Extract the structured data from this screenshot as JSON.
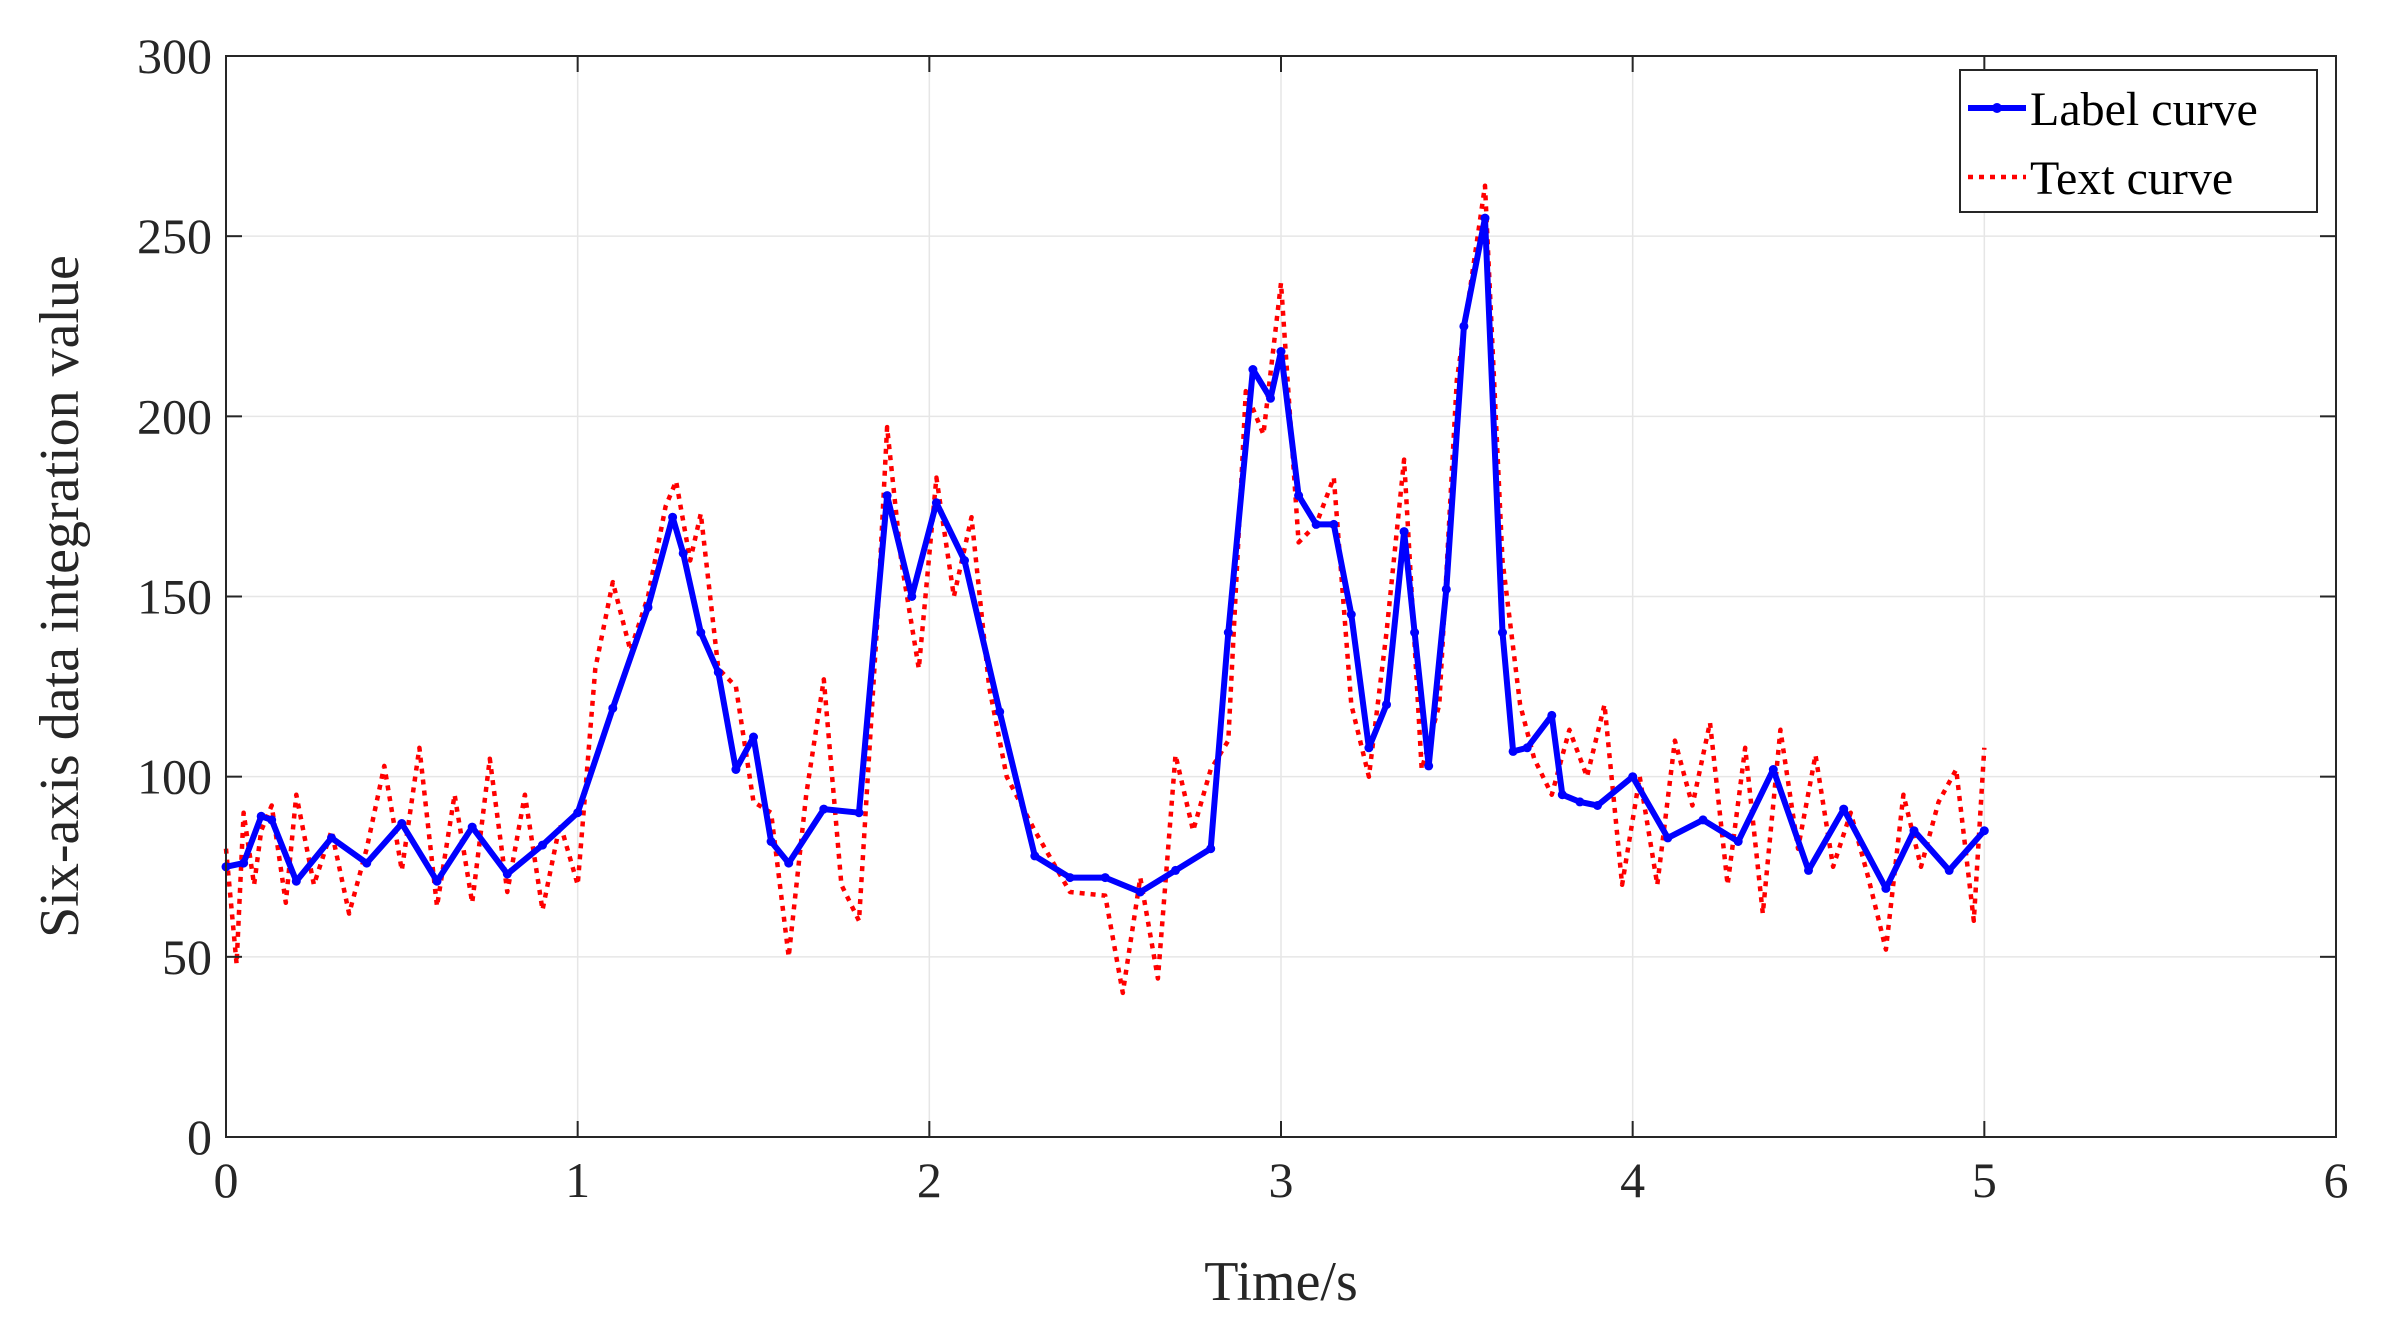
{
  "chart_data": {
    "type": "line",
    "title": "",
    "xlabel": "Time/s",
    "ylabel": "Six-axis data integration value",
    "xlim": [
      0,
      6
    ],
    "ylim": [
      0,
      300
    ],
    "xticks": [
      "0",
      "1",
      "2",
      "3",
      "4",
      "5",
      "6"
    ],
    "yticks": [
      "0",
      "50",
      "100",
      "150",
      "200",
      "250",
      "300"
    ],
    "grid": true,
    "legend_position": "top-right",
    "series": [
      {
        "name": "Label curve",
        "color": "#0000ff",
        "style": "solid-with-point-markers",
        "x": [
          0,
          0.05,
          0.1,
          0.13,
          0.2,
          0.3,
          0.4,
          0.5,
          0.6,
          0.7,
          0.8,
          0.9,
          1.0,
          1.1,
          1.2,
          1.27,
          1.3,
          1.35,
          1.4,
          1.45,
          1.5,
          1.55,
          1.6,
          1.7,
          1.8,
          1.88,
          1.95,
          2.02,
          2.1,
          2.2,
          2.3,
          2.4,
          2.5,
          2.6,
          2.7,
          2.8,
          2.85,
          2.92,
          2.97,
          3.0,
          3.05,
          3.1,
          3.15,
          3.2,
          3.25,
          3.3,
          3.35,
          3.38,
          3.42,
          3.47,
          3.52,
          3.58,
          3.63,
          3.66,
          3.7,
          3.77,
          3.8,
          3.85,
          3.9,
          4.0,
          4.1,
          4.2,
          4.3,
          4.4,
          4.5,
          4.6,
          4.72,
          4.8,
          4.9,
          5.0
        ],
        "values": [
          75,
          76,
          89,
          88,
          71,
          83,
          76,
          87,
          71,
          86,
          73,
          81,
          90,
          119,
          147,
          172,
          162,
          140,
          129,
          102,
          111,
          82,
          76,
          91,
          90,
          178,
          150,
          176,
          160,
          118,
          78,
          72,
          72,
          68,
          74,
          80,
          140,
          213,
          205,
          218,
          178,
          170,
          170,
          145,
          108,
          120,
          168,
          140,
          103,
          152,
          225,
          255,
          140,
          107,
          108,
          117,
          95,
          93,
          92,
          100,
          83,
          88,
          82,
          102,
          74,
          91,
          69,
          85,
          74,
          85
        ]
      },
      {
        "name": "Text curve",
        "color": "#ff0000",
        "style": "dotted",
        "x": [
          0,
          0.03,
          0.05,
          0.08,
          0.1,
          0.13,
          0.17,
          0.2,
          0.25,
          0.3,
          0.35,
          0.4,
          0.45,
          0.5,
          0.55,
          0.6,
          0.65,
          0.7,
          0.75,
          0.8,
          0.85,
          0.9,
          0.95,
          1.0,
          1.05,
          1.1,
          1.15,
          1.2,
          1.25,
          1.28,
          1.32,
          1.35,
          1.4,
          1.45,
          1.5,
          1.55,
          1.6,
          1.65,
          1.7,
          1.75,
          1.8,
          1.85,
          1.88,
          1.92,
          1.97,
          2.02,
          2.07,
          2.12,
          2.17,
          2.22,
          2.3,
          2.4,
          2.5,
          2.55,
          2.6,
          2.65,
          2.7,
          2.75,
          2.8,
          2.85,
          2.9,
          2.95,
          3.0,
          3.05,
          3.1,
          3.15,
          3.2,
          3.25,
          3.3,
          3.35,
          3.4,
          3.45,
          3.5,
          3.58,
          3.63,
          3.68,
          3.72,
          3.77,
          3.82,
          3.87,
          3.92,
          3.97,
          4.02,
          4.07,
          4.12,
          4.17,
          4.22,
          4.27,
          4.32,
          4.37,
          4.42,
          4.47,
          4.52,
          4.57,
          4.62,
          4.67,
          4.72,
          4.77,
          4.82,
          4.87,
          4.92,
          4.97,
          5.0
        ],
        "values": [
          80,
          48,
          90,
          70,
          85,
          92,
          65,
          95,
          70,
          85,
          62,
          80,
          103,
          74,
          108,
          64,
          95,
          65,
          105,
          68,
          95,
          63,
          87,
          70,
          130,
          154,
          135,
          150,
          175,
          182,
          160,
          173,
          130,
          125,
          93,
          90,
          50,
          95,
          127,
          70,
          60,
          140,
          197,
          160,
          130,
          183,
          150,
          172,
          125,
          100,
          85,
          68,
          67,
          40,
          72,
          44,
          106,
          85,
          102,
          110,
          207,
          195,
          237,
          165,
          170,
          183,
          120,
          100,
          140,
          188,
          102,
          120,
          210,
          264,
          160,
          120,
          105,
          95,
          113,
          100,
          120,
          70,
          100,
          70,
          110,
          92,
          115,
          70,
          108,
          62,
          113,
          80,
          106,
          75,
          90,
          72,
          52,
          95,
          75,
          93,
          102,
          60,
          108
        ]
      }
    ]
  }
}
